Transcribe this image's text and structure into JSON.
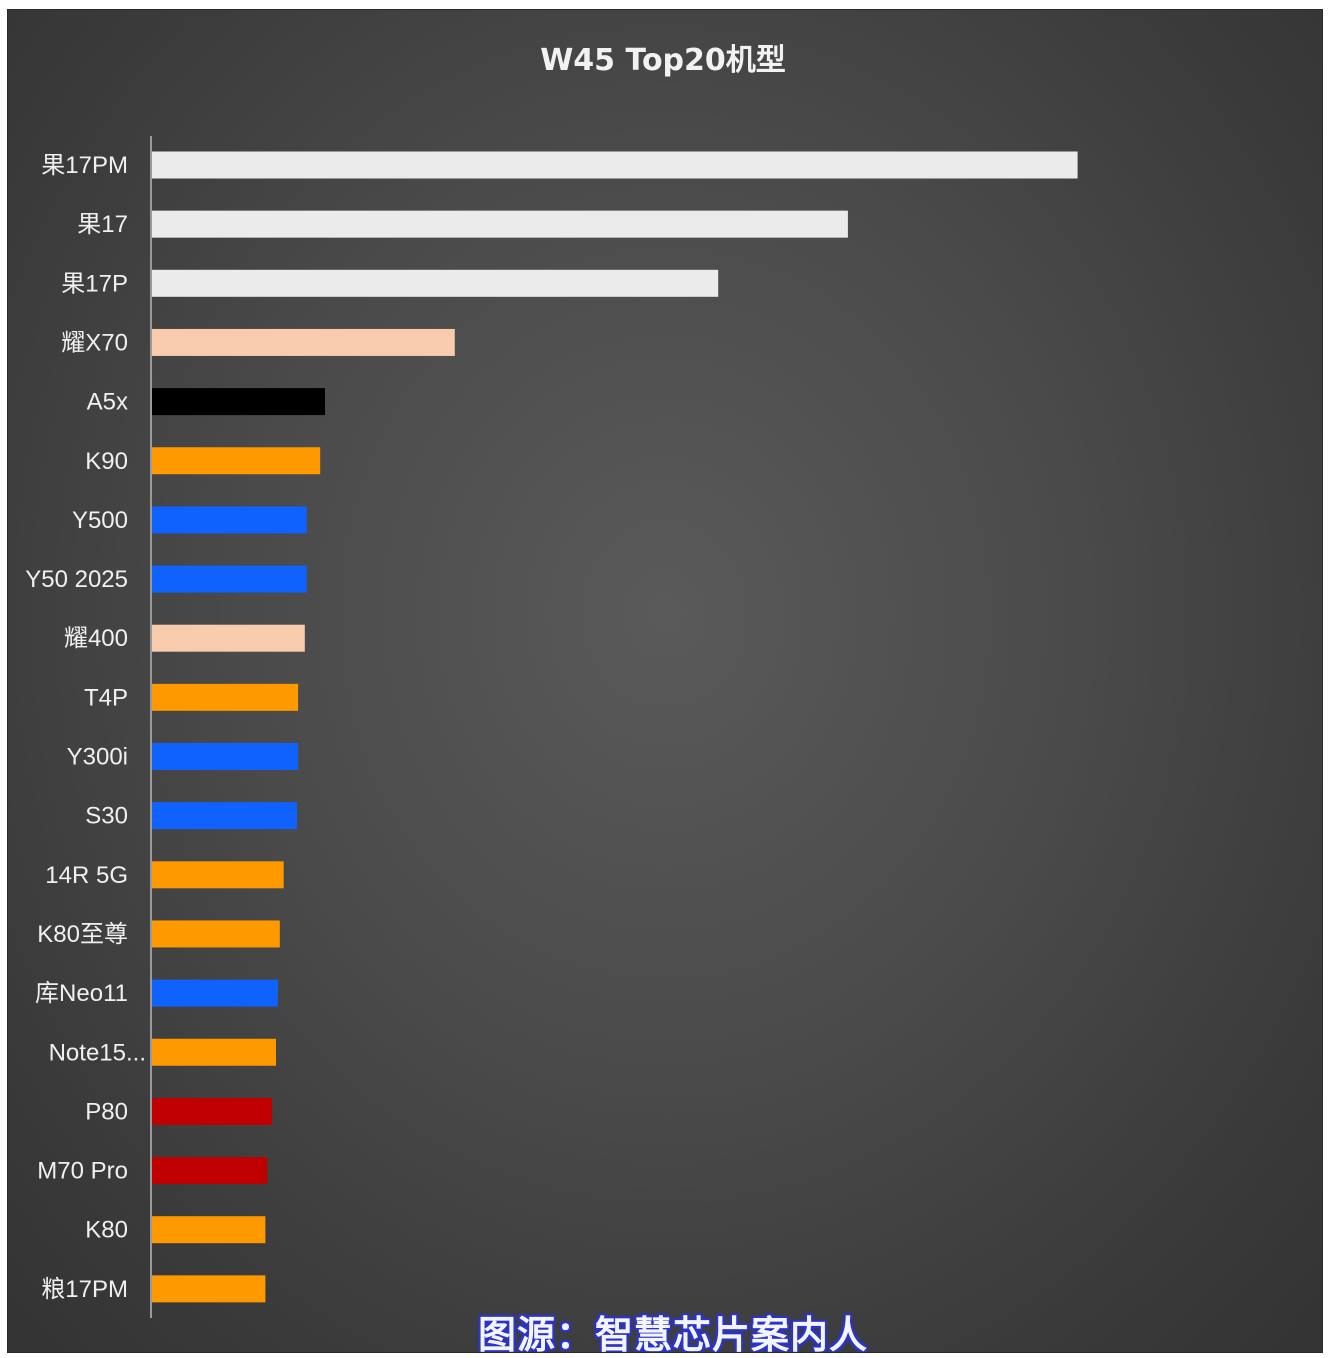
{
  "chart_data": {
    "type": "bar",
    "orientation": "horizontal",
    "title": "W45 Top20机型",
    "xlabel": "",
    "ylabel": "",
    "grid": false,
    "categories": [
      "果17PM",
      "果17",
      "果17P",
      "耀X70",
      "A5x",
      "K90",
      "Y500",
      "Y50 2025",
      "耀400",
      "T4P",
      "Y300i",
      "S30",
      "14R 5G",
      "K80至尊",
      "库Neo11",
      "Note15...",
      "P80",
      "M70 Pro",
      "K80",
      "粮17PM"
    ],
    "values": [
      963,
      724,
      589,
      315,
      180,
      175,
      161,
      161,
      159,
      152,
      152,
      151,
      137,
      133,
      131,
      129,
      125,
      120,
      118,
      118
    ],
    "colors": [
      "#ebebeb",
      "#ebebeb",
      "#ebebeb",
      "#f8cbad",
      "#000000",
      "#ff9900",
      "#0f62fe",
      "#0f62fe",
      "#f8cbad",
      "#ff9900",
      "#0f62fe",
      "#0f62fe",
      "#ff9900",
      "#ff9900",
      "#0f62fe",
      "#ff9900",
      "#c00000",
      "#c00000",
      "#ff9900",
      "#ff9900"
    ],
    "xlim": [
      0,
      1160
    ]
  },
  "source": "图源：智慧芯片案内人"
}
